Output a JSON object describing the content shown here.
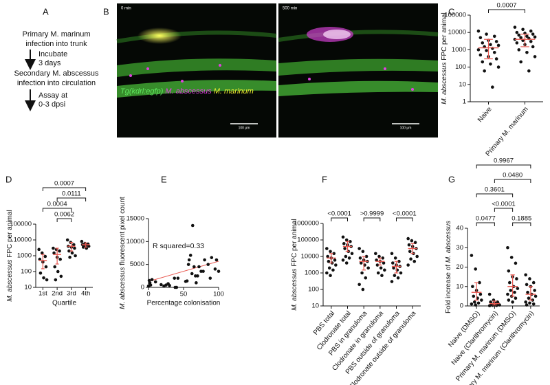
{
  "panel_a": {
    "label": "A",
    "lines": [
      "Primary M. marinum",
      "infection into trunk",
      "Secondary M. abscessus",
      "infection into circulation"
    ],
    "arrow_notes": [
      [
        "Incubate",
        "3 days"
      ],
      [
        "Assay at",
        "0-3 dpsi"
      ]
    ]
  },
  "panel_b": {
    "label": "B",
    "images": [
      {
        "time": "0 min",
        "scale_bar": "100 μm"
      },
      {
        "time": "500 min",
        "scale_bar": "100 μm"
      }
    ],
    "caption": [
      "Tg(kdrl:egfp)",
      "M. abscessus",
      "M. marinum"
    ]
  },
  "chart_data": [
    {
      "type": "strip",
      "label": "C",
      "ylabel": [
        "M. abscessus",
        " FPC per animal"
      ],
      "ylabel_italic": [
        true,
        false
      ],
      "categories": [
        "Naive",
        "Primary M. marinum"
      ],
      "rotate_labels": true,
      "log": true,
      "ylim": [
        1,
        100000
      ],
      "yticks": [
        1,
        10,
        100,
        1000,
        10000,
        100000
      ],
      "values": [
        [
          12000,
          8000,
          6000,
          5000,
          3500,
          3000,
          2500,
          2000,
          1800,
          1500,
          1200,
          1000,
          900,
          700,
          500,
          400,
          300,
          200,
          150,
          100,
          60,
          7
        ],
        [
          20000,
          15000,
          12000,
          10000,
          9000,
          8000,
          7000,
          6000,
          5500,
          5000,
          4500,
          4000,
          3500,
          3000,
          2500,
          2000,
          1500,
          1000,
          700,
          400,
          200,
          60
        ]
      ],
      "centers": [
        1300,
        4000
      ],
      "spreads": [
        [
          300,
          4000
        ],
        [
          1500,
          8000
        ]
      ],
      "comparisons": [
        {
          "pair": [
            0,
            1
          ],
          "label": "0.0007"
        }
      ]
    },
    {
      "type": "strip",
      "label": "D",
      "ylabel": [
        "M. abscessus",
        " FPC per animal"
      ],
      "ylabel_italic": [
        true,
        false
      ],
      "xlabel": "Quartile",
      "categories": [
        "1st",
        "2nd",
        "3rd",
        "4th"
      ],
      "rotate_labels": false,
      "log": true,
      "ylim": [
        10,
        100000
      ],
      "yticks": [
        10,
        100,
        1000,
        10000,
        100000
      ],
      "values": [
        [
          2500,
          1500,
          900,
          600,
          400,
          200,
          80,
          40,
          30
        ],
        [
          3000,
          2500,
          2000,
          1500,
          800,
          600,
          200,
          100,
          50,
          30
        ],
        [
          10000,
          7000,
          5000,
          4000,
          3500,
          3000,
          2000,
          1500,
          1000,
          800
        ],
        [
          8000,
          6000,
          5500,
          5000,
          4500,
          4000,
          3500,
          3000
        ]
      ],
      "centers": [
        500,
        1200,
        4000,
        5000
      ],
      "spreads": [
        [
          150,
          1200
        ],
        [
          300,
          3000
        ],
        [
          2000,
          7000
        ],
        [
          3500,
          6500
        ]
      ],
      "comparisons": [
        {
          "pair": [
            1,
            2
          ],
          "label": "0.0062"
        },
        {
          "pair": [
            0,
            2
          ],
          "label": "0.0004"
        },
        {
          "pair": [
            1,
            3
          ],
          "label": "0.0111"
        },
        {
          "pair": [
            0,
            3
          ],
          "label": "0.0007"
        }
      ]
    },
    {
      "type": "scatter",
      "label": "E",
      "ylabel": [
        "M. abscessus",
        " fluorescent pixel count"
      ],
      "ylabel_italic": [
        true,
        false
      ],
      "xlabel": "Percentage colonisation",
      "annotation": "R squared=0.33",
      "xlim": [
        0,
        100
      ],
      "xticks": [
        0,
        50,
        100
      ],
      "ylim": [
        0,
        15000
      ],
      "yticks": [
        0,
        5000,
        10000,
        15000
      ],
      "x": [
        0,
        1,
        2,
        3,
        5,
        10,
        18,
        22,
        25,
        28,
        30,
        37,
        38,
        40,
        42,
        53,
        55,
        57,
        58,
        60,
        62,
        63,
        65,
        67,
        68,
        70,
        72,
        75,
        78,
        80,
        85,
        88,
        90,
        95,
        97,
        100
      ],
      "y": [
        300,
        1500,
        1000,
        500,
        1700,
        1200,
        600,
        300,
        500,
        800,
        400,
        2000,
        0,
        0,
        2000,
        1300,
        1400,
        5000,
        6000,
        7000,
        3000,
        13500,
        4500,
        2500,
        1000,
        2500,
        4500,
        3500,
        3500,
        6000,
        5000,
        2000,
        6500,
        4000,
        6000,
        3500
      ],
      "trend": {
        "x": [
          0,
          100
        ],
        "y": [
          1300,
          5700
        ]
      }
    },
    {
      "type": "strip",
      "label": "F",
      "ylabel": [
        "M. abscessus",
        " FPC per animal"
      ],
      "ylabel_italic": [
        true,
        false
      ],
      "categories": [
        "PBS total",
        "Clodronate total",
        "PBS in granuloma",
        "Clodronate in granuloma",
        "PBS outside of granuloma",
        "Clodronate outside of granuloma"
      ],
      "rotate_labels": true,
      "log": true,
      "ylim": [
        10,
        1000000
      ],
      "yticks": [
        10,
        100,
        1000,
        10000,
        100000,
        1000000
      ],
      "values": [
        [
          30000,
          20000,
          15000,
          10000,
          8000,
          6000,
          5000,
          4000,
          3000,
          2000,
          1500,
          1000,
          700
        ],
        [
          150000,
          100000,
          80000,
          60000,
          50000,
          40000,
          30000,
          20000,
          15000,
          10000,
          8000,
          6000,
          4000
        ],
        [
          30000,
          20000,
          10000,
          8000,
          6000,
          5000,
          4000,
          3000,
          2000,
          1000,
          500,
          200,
          100
        ],
        [
          15000,
          10000,
          8000,
          6000,
          5000,
          4000,
          3000,
          2000,
          1500,
          1000,
          700
        ],
        [
          15000,
          8000,
          5000,
          4000,
          3000,
          2500,
          2000,
          1500,
          1000,
          700,
          500,
          300
        ],
        [
          120000,
          90000,
          70000,
          50000,
          40000,
          30000,
          20000,
          15000,
          10000,
          7000,
          5000,
          3000
        ]
      ],
      "centers": [
        8000,
        40000,
        5000,
        5000,
        2500,
        30000
      ],
      "spreads": [
        [
          4000,
          15000
        ],
        [
          20000,
          80000
        ],
        [
          1500,
          10000
        ],
        [
          3000,
          8000
        ],
        [
          1000,
          5000
        ],
        [
          15000,
          60000
        ]
      ],
      "comparisons": [
        {
          "pair": [
            0,
            1
          ],
          "label": "<0.0001"
        },
        {
          "pair": [
            2,
            3
          ],
          "label": ">0.9999"
        },
        {
          "pair": [
            4,
            5
          ],
          "label": "<0.0001"
        }
      ]
    },
    {
      "type": "strip",
      "label": "G",
      "ylabel": [
        "Fold increase of ",
        "M. abscessus"
      ],
      "ylabel_italic": [
        false,
        true
      ],
      "categories": [
        "Naive (DMSO)",
        "Naive (Clarithromycin)",
        "Primary M. marinum (DMSO)",
        "Primary M. marinum  (Clarithromycin)"
      ],
      "rotate_labels": true,
      "log": false,
      "ylim": [
        0,
        40
      ],
      "yticks": [
        0,
        10,
        20,
        30,
        40
      ],
      "values": [
        [
          26,
          19,
          12,
          10,
          8,
          6,
          5,
          4,
          3,
          2,
          1.5,
          1,
          0.5
        ],
        [
          6,
          3,
          2,
          2,
          1.5,
          1,
          1,
          0.5,
          0.5,
          0.3,
          0.2,
          0.1
        ],
        [
          30,
          25,
          22,
          18,
          15,
          14,
          12,
          10,
          9,
          8,
          7,
          6,
          5,
          4,
          3,
          2
        ],
        [
          16,
          14,
          12,
          11,
          10,
          8,
          7,
          6,
          5,
          4,
          3,
          2,
          1.5,
          1,
          0.5
        ]
      ],
      "centers": [
        7,
        1.2,
        10,
        6
      ],
      "spreads": [
        [
          3,
          12
        ],
        [
          0.5,
          2.5
        ],
        [
          5,
          16
        ],
        [
          3,
          10
        ]
      ],
      "comparisons": [
        {
          "pair": [
            0,
            1
          ],
          "label": "0.0477"
        },
        {
          "pair": [
            2,
            3
          ],
          "label": "0.1885"
        },
        {
          "pair": [
            1,
            2
          ],
          "label": "<0.0001"
        },
        {
          "pair": [
            0,
            2
          ],
          "label": "0.3601"
        },
        {
          "pair": [
            1,
            3
          ],
          "label": "0.0480"
        },
        {
          "pair": [
            0,
            3
          ],
          "label": "0.9967"
        }
      ]
    }
  ]
}
